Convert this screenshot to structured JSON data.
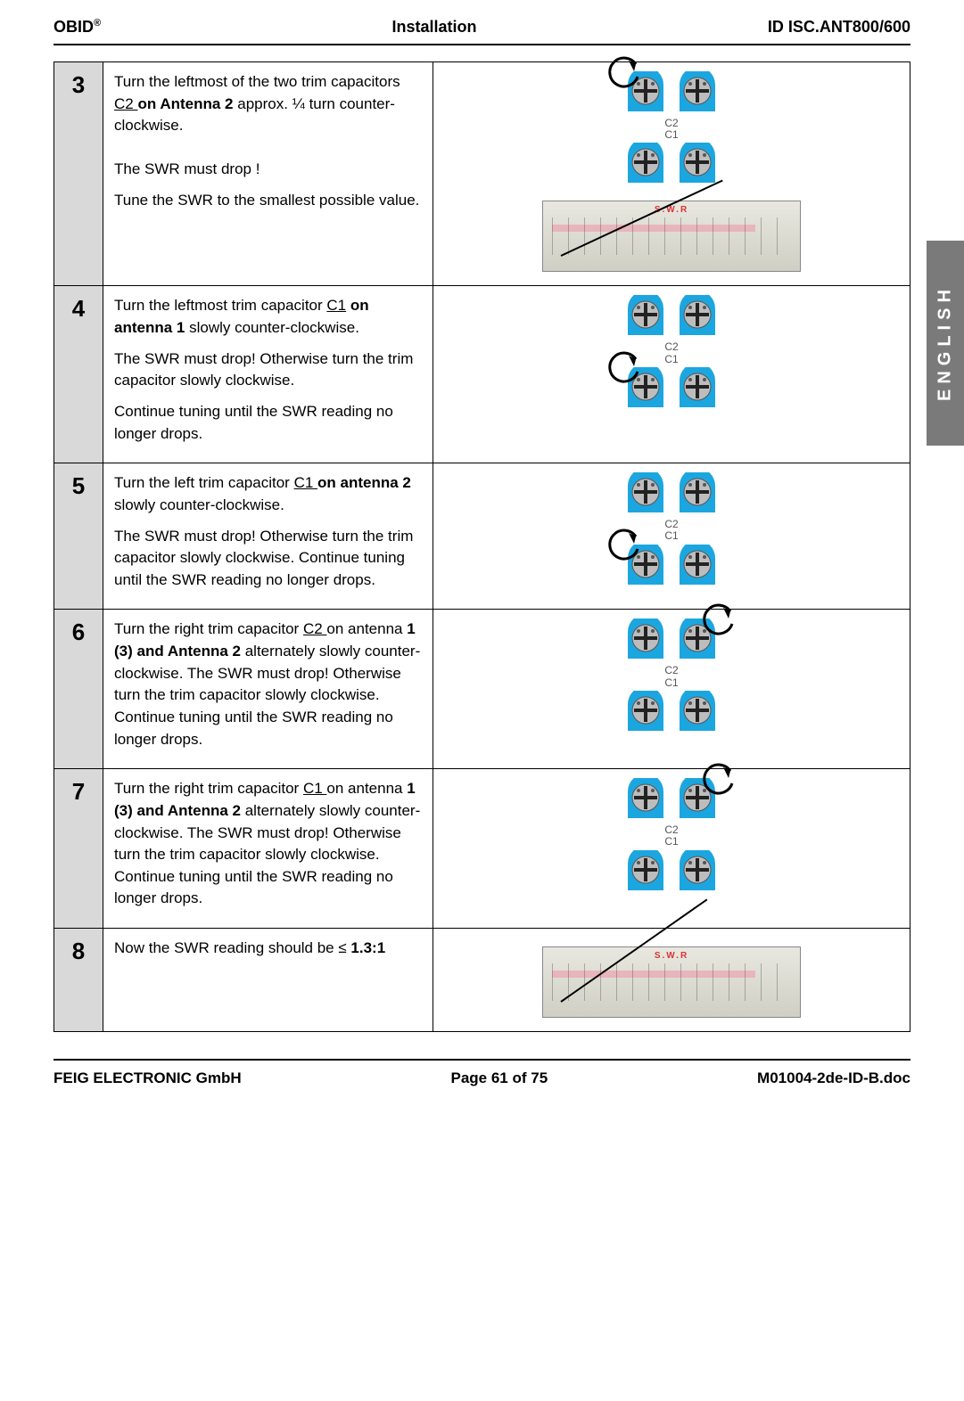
{
  "header": {
    "left_brand": "OBID",
    "left_sup": "®",
    "center": "Installation",
    "right": "ID ISC.ANT800/600"
  },
  "side_tab": "ENGLISH",
  "cap_labels": {
    "top": "C2",
    "bottom": "C1"
  },
  "cap_color": "#1ca6e0",
  "cap_cross": "#222222",
  "steps": [
    {
      "num": "3",
      "paras": [
        {
          "segments": [
            {
              "t": "Turn the leftmost of the two trim capacitors "
            },
            {
              "t": "C2 ",
              "u": true
            },
            {
              "t": "on Antenna 2",
              "b": true
            },
            {
              "t": " approx. ¼ turn counter-clockwise."
            }
          ]
        },
        {
          "gap": true
        },
        {
          "segments": [
            {
              "t": "The SWR must drop !"
            }
          ]
        },
        {
          "segments": [
            {
              "t": "Tune the SWR to the smallest possible value."
            }
          ]
        }
      ],
      "arrow_pos": "top-left",
      "show_meter": true,
      "needle_deg": -25
    },
    {
      "num": "4",
      "paras": [
        {
          "segments": [
            {
              "t": "Turn the leftmost trim capacitor "
            },
            {
              "t": "C1",
              "u": true
            },
            {
              "t": " on antenna 1",
              "b": true
            },
            {
              "t": " slowly counter-clockwise."
            }
          ]
        },
        {
          "segments": [
            {
              "t": "The SWR must drop! Otherwise turn the trim capacitor slowly clockwise."
            }
          ]
        },
        {
          "segments": [
            {
              "t": "Continue tuning until the SWR reading no longer drops."
            }
          ]
        }
      ],
      "arrow_pos": "bottom-left",
      "show_meter": false
    },
    {
      "num": "5",
      "paras": [
        {
          "segments": [
            {
              "t": "Turn the left trim capacitor "
            },
            {
              "t": "C1 ",
              "u": true
            },
            {
              "t": "on antenna 2",
              "b": true
            },
            {
              "t": " slowly counter-clockwise."
            }
          ]
        },
        {
          "segments": [
            {
              "t": "The SWR must drop! Otherwise turn the trim capacitor slowly clockwise. Continue tuning until the SWR reading no longer drops."
            }
          ]
        }
      ],
      "arrow_pos": "bottom-left",
      "show_meter": false
    },
    {
      "num": "6",
      "paras": [
        {
          "segments": [
            {
              "t": "Turn the right trim capacitor "
            },
            {
              "t": "C2 ",
              "u": true
            },
            {
              "t": "on antenna "
            },
            {
              "t": "1 (3) and Antenna 2",
              "b": true
            },
            {
              "t": " alternately slowly counter-clockwise. The SWR must drop! Otherwise turn the trim capacitor slowly clockwise. Continue tuning until the SWR reading no longer drops."
            }
          ]
        }
      ],
      "arrow_pos": "top-right",
      "show_meter": false
    },
    {
      "num": "7",
      "paras": [
        {
          "segments": [
            {
              "t": "Turn the right trim capacitor "
            },
            {
              "t": "C1 ",
              "u": true
            },
            {
              "t": "on antenna "
            },
            {
              "t": "1 (3) and Antenna 2",
              "b": true
            },
            {
              "t": " alternately slowly counter-clockwise. The SWR must drop! Otherwise turn the trim capacitor slowly clockwise. Continue tuning until the SWR reading no longer drops."
            }
          ]
        }
      ],
      "arrow_pos": "top-right",
      "show_meter": false
    },
    {
      "num": "8",
      "paras": [
        {
          "segments": [
            {
              "t": "Now the SWR reading should be "
            },
            {
              "t": "≤",
              "b": false
            },
            {
              "t": " 1.3:1",
              "b": true
            }
          ]
        }
      ],
      "arrow_pos": "none",
      "show_meter": true,
      "meter_only": true,
      "needle_deg": -35
    }
  ],
  "footer": {
    "left": "FEIG ELECTRONIC GmbH",
    "center": "Page 61 of 75",
    "right": "M01004-2de-ID-B.doc"
  }
}
